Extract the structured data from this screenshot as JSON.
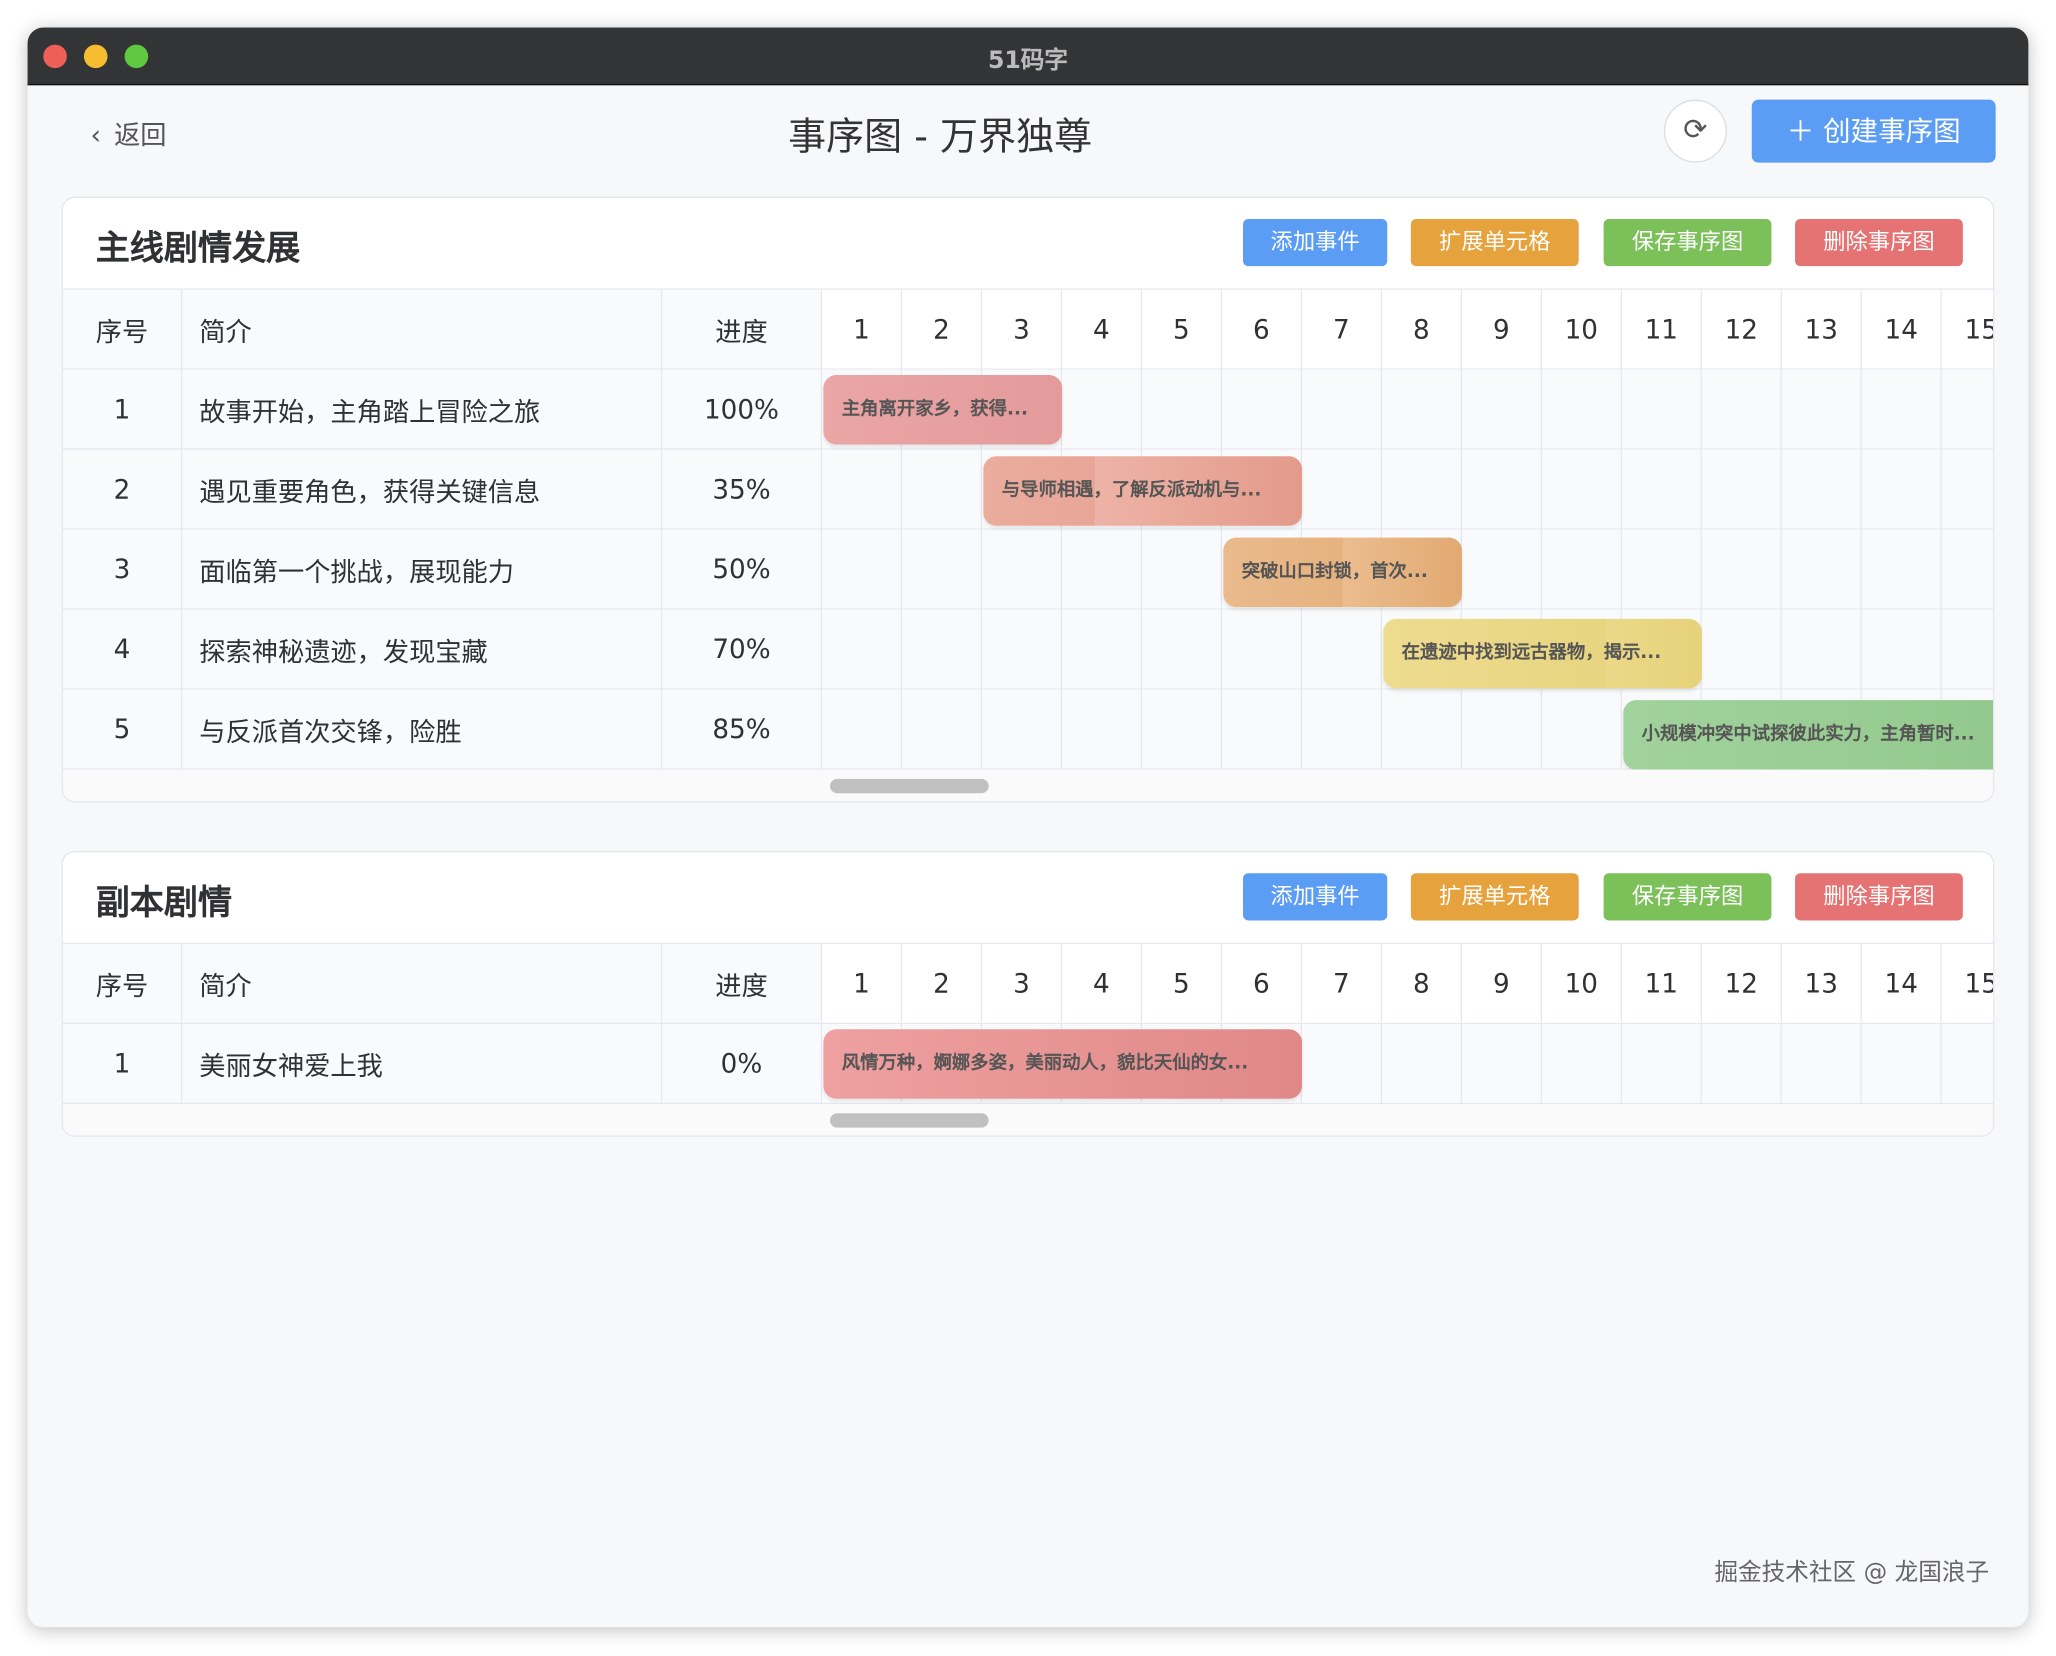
{
  "window": {
    "title": "51码字",
    "traffic_colors": [
      "#ee5f57",
      "#f5bd2f",
      "#5fc840"
    ]
  },
  "header": {
    "back_label": "返回",
    "title": "事序图 - 万界独尊",
    "refresh_icon": "refresh-icon",
    "create_label": "创建事序图"
  },
  "buttons": {
    "add": "添加事件",
    "expand": "扩展单元格",
    "save": "保存事序图",
    "delete": "删除事序图"
  },
  "colors": {
    "add": "#5b9cf5",
    "expand": "#e6a23c",
    "save": "#7cc05a",
    "delete": "#e57373"
  },
  "columns": {
    "idx": "序号",
    "desc": "简介",
    "progress": "进度",
    "timeline": [
      "1",
      "2",
      "3",
      "4",
      "5",
      "6",
      "7",
      "8",
      "9",
      "10",
      "11",
      "12",
      "13",
      "14",
      "15"
    ]
  },
  "sections": [
    {
      "title": "主线剧情发展",
      "rows": [
        {
          "idx": "1",
          "desc": "故事开始，主角踏上冒险之旅",
          "progress": "100%",
          "pct": 100,
          "start": 1,
          "end": 3,
          "bar": "主角离开家乡，获得...",
          "color": "#f2b2b2",
          "dark": "#e39a9a"
        },
        {
          "idx": "2",
          "desc": "遇见重要角色，获得关键信息",
          "progress": "35%",
          "pct": 35,
          "start": 3,
          "end": 6,
          "bar": "与导师相遇，了解反派动机与...",
          "color": "#f3c1b6",
          "dark": "#e39a8a"
        },
        {
          "idx": "3",
          "desc": "面临第一个挑战，展现能力",
          "progress": "50%",
          "pct": 50,
          "start": 6,
          "end": 8,
          "bar": "突破山口封锁，首次...",
          "color": "#f4cfac",
          "dark": "#e2aa72"
        },
        {
          "idx": "4",
          "desc": "探索神秘遗迹，发现宝藏",
          "progress": "70%",
          "pct": 70,
          "start": 8,
          "end": 11,
          "bar": "在遗迹中找到远古器物，揭示...",
          "color": "#f8e8a8",
          "dark": "#e6d27a"
        },
        {
          "idx": "5",
          "desc": "与反派首次交锋，险胜",
          "progress": "85%",
          "pct": 85,
          "start": 11,
          "end": 15,
          "bar": "小规模冲突中试探彼此实力，主角暂时...",
          "color": "#b7e0b3",
          "dark": "#8fc78a"
        }
      ]
    },
    {
      "title": "副本剧情",
      "rows": [
        {
          "idx": "1",
          "desc": "美丽女神爱上我",
          "progress": "0%",
          "pct": 0,
          "start": 1,
          "end": 6,
          "bar": "风情万种，婀娜多姿，美丽动人，貌比天仙的女...",
          "color": "#eea0a0",
          "dark": "#e08888"
        }
      ]
    }
  ],
  "watermark": "掘金技术社区 @ 龙国浪子"
}
